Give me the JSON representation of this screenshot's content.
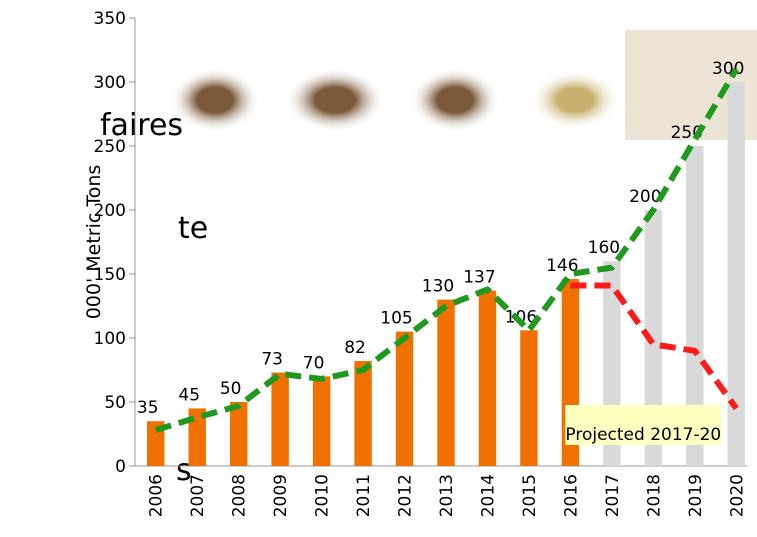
{
  "chart_data": {
    "type": "bar",
    "background_text": [
      "faires",
      "te",
      "s"
    ],
    "y_label": "000' Metric Tons",
    "annotation": "Projected 2017-20",
    "categories": [
      "2006",
      "2007",
      "2008",
      "2009",
      "2010",
      "2011",
      "2012",
      "2013",
      "2014",
      "2015",
      "2016",
      "2017",
      "2018",
      "2019",
      "2020"
    ],
    "values": [
      35,
      45,
      50,
      73,
      70,
      82,
      105,
      130,
      137,
      106,
      146,
      160,
      200,
      250,
      300
    ],
    "colors": [
      "#f07000",
      "#f07000",
      "#f07000",
      "#f07000",
      "#f07000",
      "#f07000",
      "#f07000",
      "#f07000",
      "#f07000",
      "#f07000",
      "#f07000",
      "#d9d9d9",
      "#d9d9d9",
      "#d9d9d9",
      "#d9d9d9"
    ],
    "lines": [
      {
        "color": "#1f9a1f",
        "values": [
          28,
          38,
          47,
          72,
          68,
          75,
          100,
          125,
          138,
          106,
          150,
          155,
          200,
          255,
          310
        ]
      },
      {
        "color": "#ff1a1a",
        "values": [
          null,
          null,
          null,
          null,
          null,
          null,
          null,
          null,
          null,
          null,
          141,
          141,
          95,
          90,
          45
        ]
      }
    ],
    "ylim": [
      0,
      350
    ],
    "yticks": [
      0,
      50,
      100,
      150,
      200,
      250,
      300,
      350
    ]
  }
}
